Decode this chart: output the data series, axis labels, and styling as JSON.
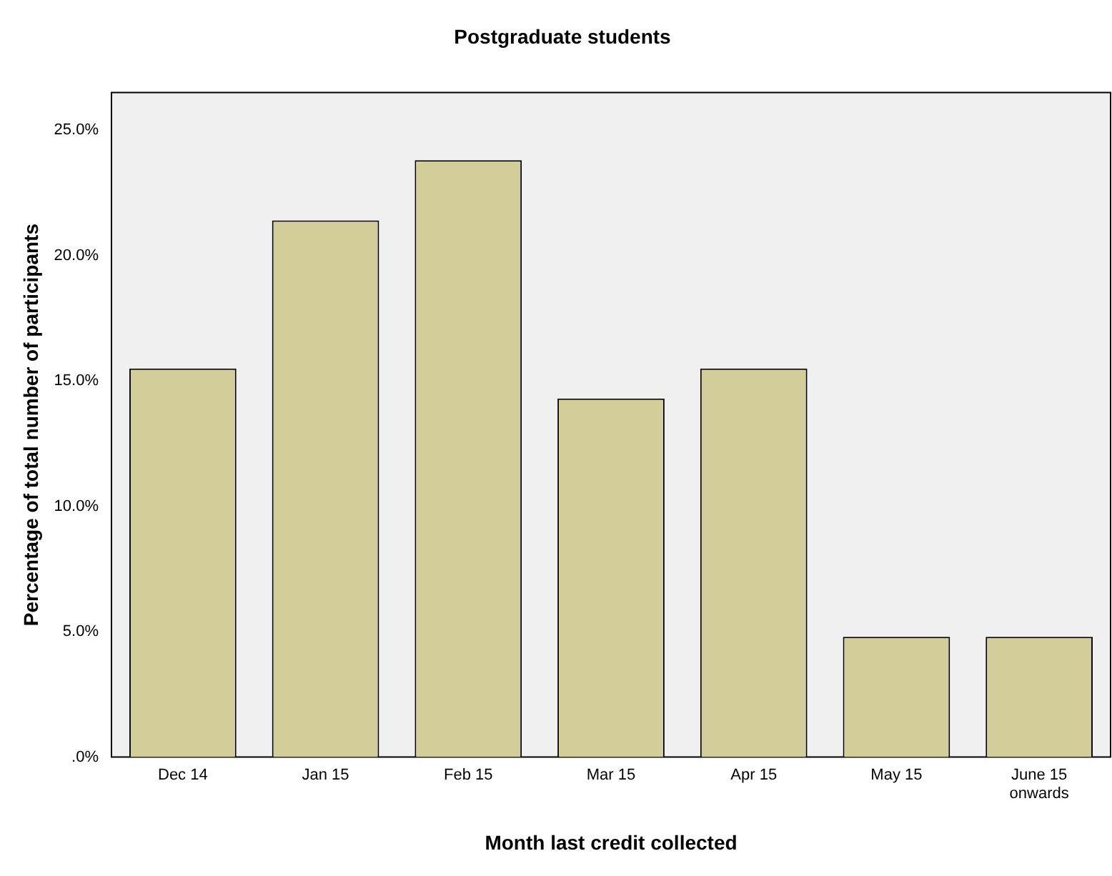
{
  "chart_data": {
    "type": "bar",
    "title": "Postgraduate students",
    "xlabel": "Month last credit collected",
    "ylabel": "Percentage of total number of participants",
    "categories": [
      "Dec 14",
      "Jan 15",
      "Feb 15",
      "Mar 15",
      "Apr 15",
      "May 15",
      "June 15 onwards"
    ],
    "values": [
      15.5,
      21.4,
      23.8,
      14.3,
      15.5,
      4.8,
      4.8
    ],
    "color": "#d3ce99",
    "ylim": [
      0,
      26.5
    ],
    "yticks": [
      {
        "value": 0,
        "label": ".0%"
      },
      {
        "value": 5,
        "label": "5.0%"
      },
      {
        "value": 10,
        "label": "10.0%"
      },
      {
        "value": 15,
        "label": "15.0%"
      },
      {
        "value": 20,
        "label": "20.0%"
      },
      {
        "value": 25,
        "label": "25.0%"
      }
    ],
    "grid": false,
    "legend": false
  }
}
